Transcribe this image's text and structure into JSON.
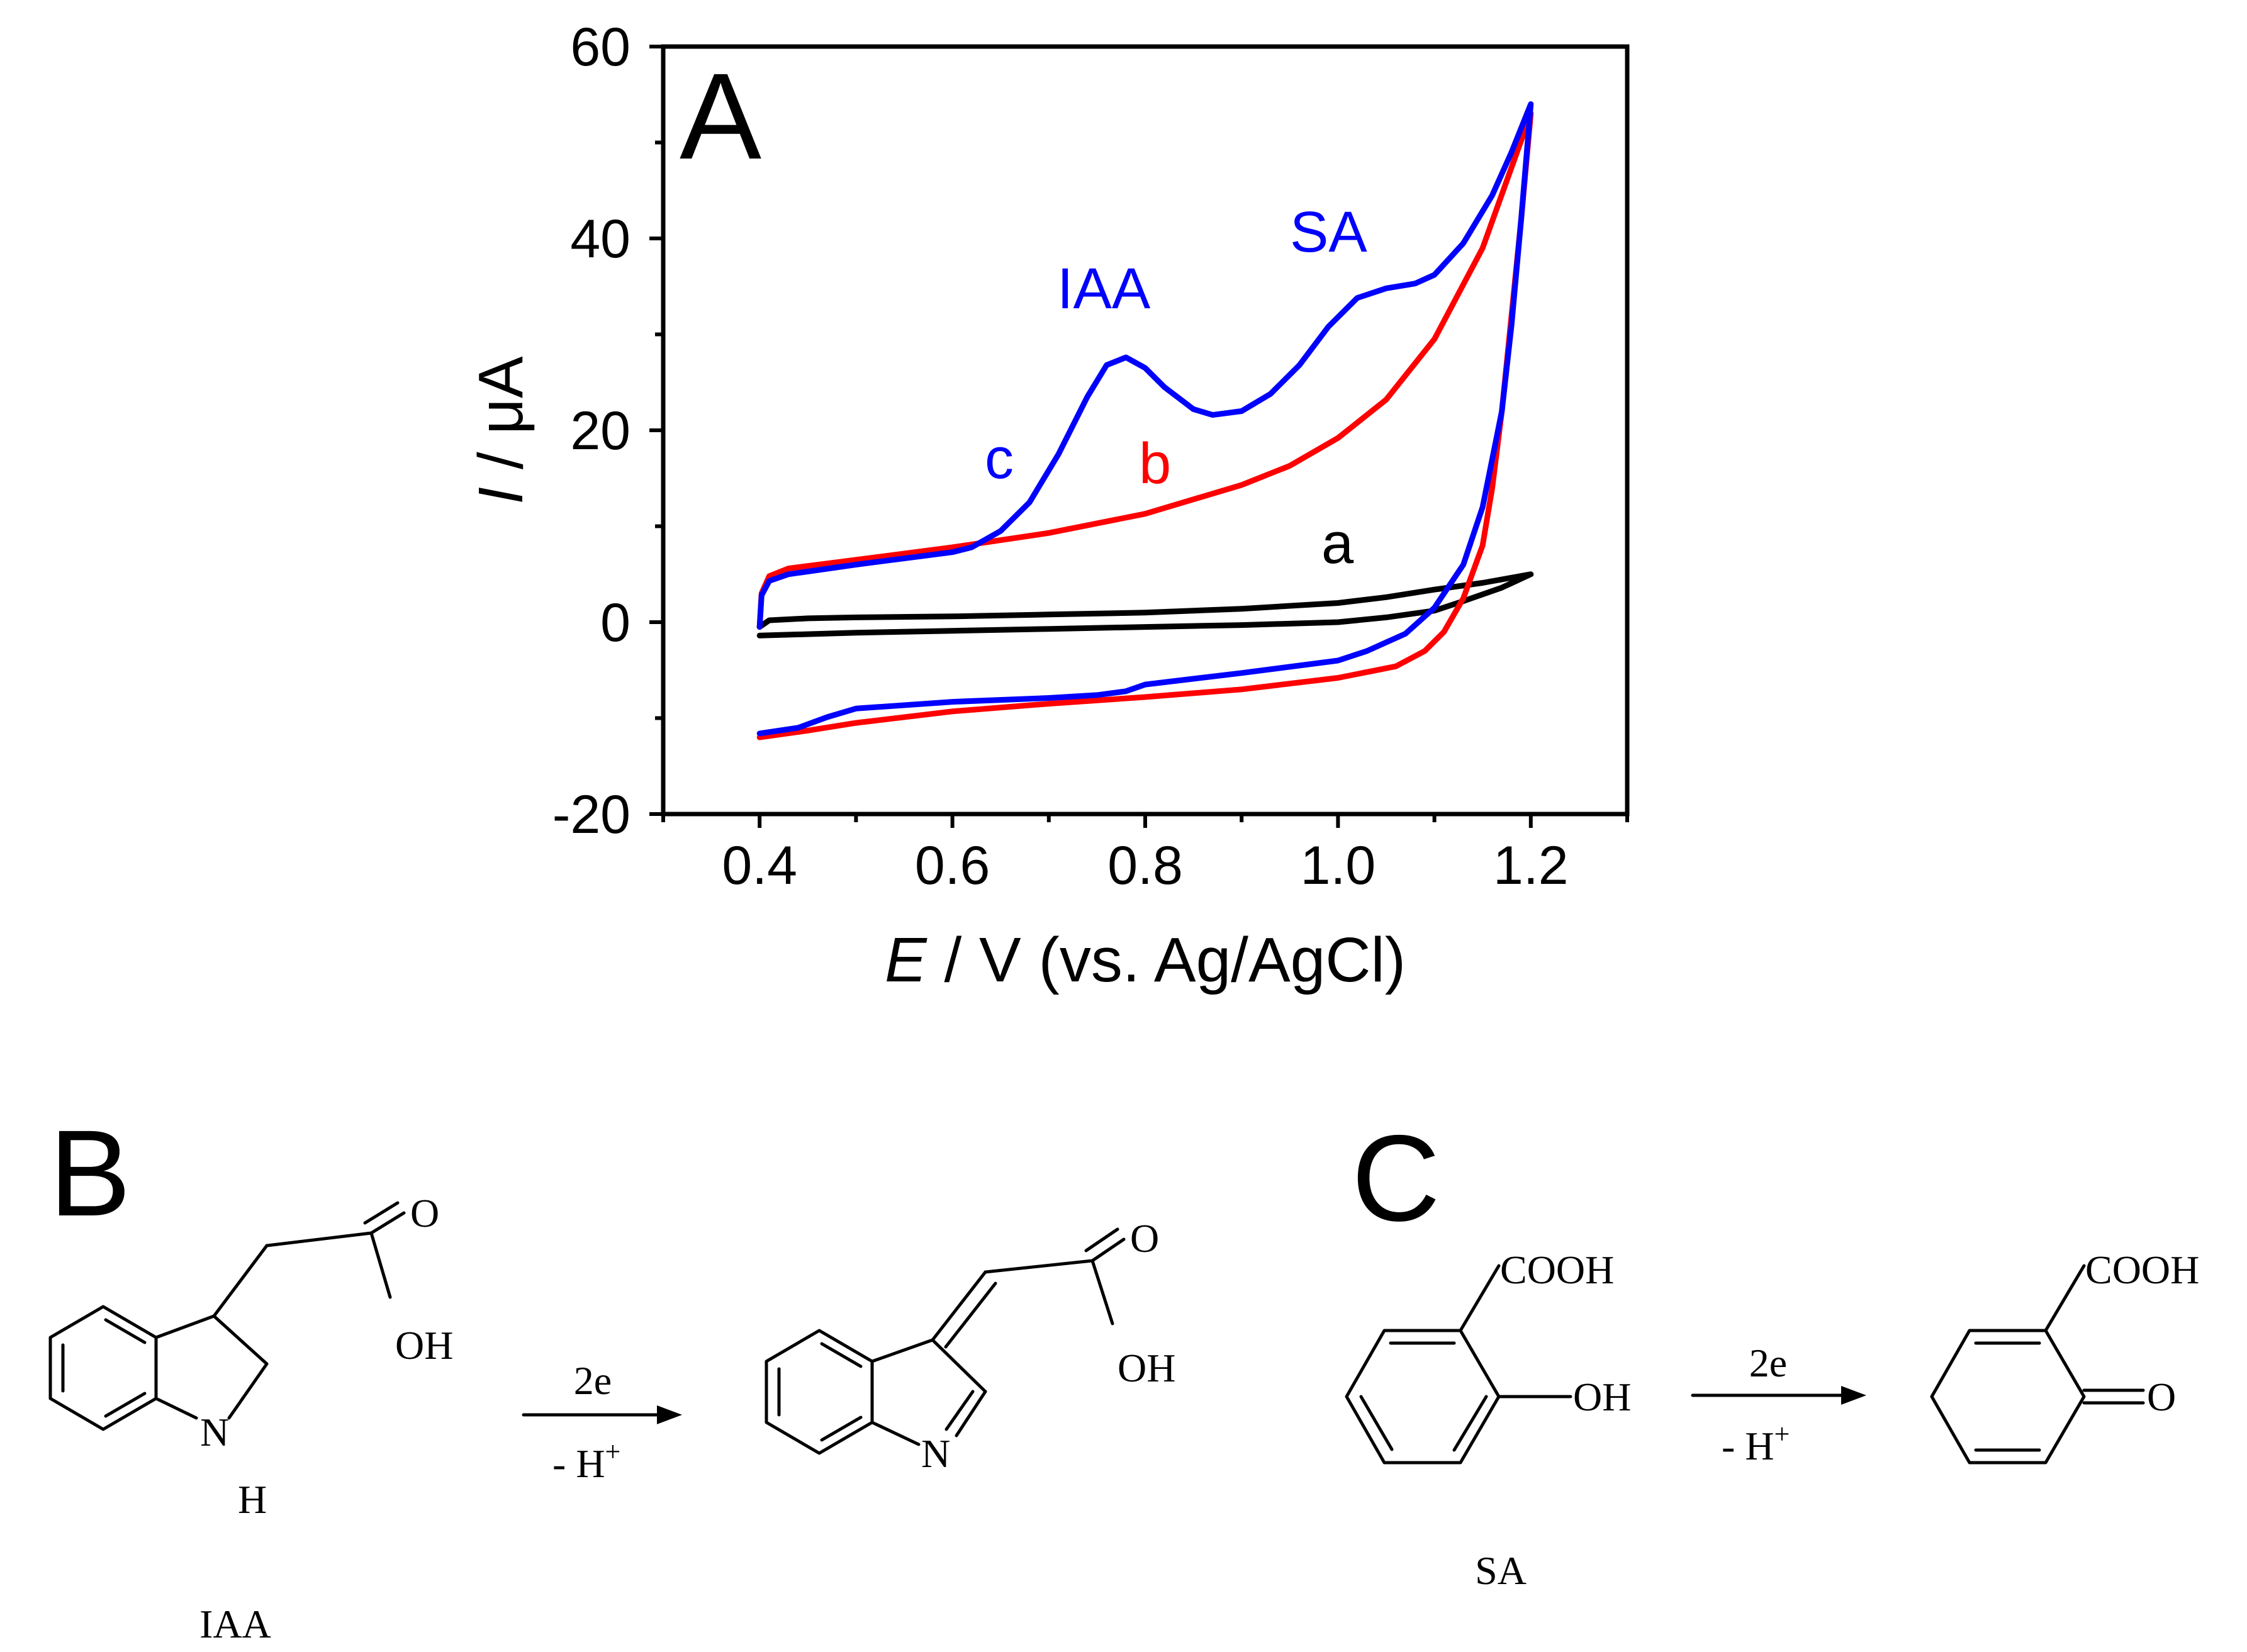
{
  "chart_data": {
    "type": "line",
    "panel_label": "A",
    "xlabel": {
      "italic": "E",
      "rest": " / V (vs. Ag/AgCl)"
    },
    "ylabel": {
      "italic": "I",
      "rest": " / μA"
    },
    "xlim": [
      0.3,
      1.3
    ],
    "ylim": [
      -20,
      60
    ],
    "x_ticks": [
      "0.4",
      "0.6",
      "0.8",
      "1.0",
      "1.2"
    ],
    "y_ticks": [
      "-20",
      "0",
      "20",
      "40",
      "60"
    ],
    "annotations": {
      "iaa": "IAA",
      "sa": "SA"
    },
    "series": [
      {
        "name": "a",
        "color": "#000000",
        "forward": [
          [
            0.4,
            -0.5
          ],
          [
            0.41,
            0.2
          ],
          [
            0.45,
            0.4
          ],
          [
            0.5,
            0.5
          ],
          [
            0.6,
            0.6
          ],
          [
            0.7,
            0.8
          ],
          [
            0.8,
            1.0
          ],
          [
            0.9,
            1.4
          ],
          [
            1.0,
            2.0
          ],
          [
            1.05,
            2.6
          ],
          [
            1.1,
            3.4
          ],
          [
            1.15,
            4.1
          ],
          [
            1.2,
            5.0
          ]
        ],
        "reverse": [
          [
            1.2,
            5.0
          ],
          [
            1.17,
            3.6
          ],
          [
            1.13,
            2.2
          ],
          [
            1.1,
            1.2
          ],
          [
            1.05,
            0.5
          ],
          [
            1.0,
            0.0
          ],
          [
            0.9,
            -0.3
          ],
          [
            0.8,
            -0.5
          ],
          [
            0.7,
            -0.7
          ],
          [
            0.6,
            -0.9
          ],
          [
            0.5,
            -1.1
          ],
          [
            0.4,
            -1.4
          ]
        ]
      },
      {
        "name": "b",
        "color": "#ff0000",
        "forward": [
          [
            0.4,
            -0.5
          ],
          [
            0.402,
            3.0
          ],
          [
            0.41,
            4.8
          ],
          [
            0.43,
            5.6
          ],
          [
            0.5,
            6.5
          ],
          [
            0.6,
            7.8
          ],
          [
            0.7,
            9.3
          ],
          [
            0.8,
            11.3
          ],
          [
            0.9,
            14.3
          ],
          [
            0.95,
            16.3
          ],
          [
            1.0,
            19.2
          ],
          [
            1.05,
            23.2
          ],
          [
            1.1,
            29.5
          ],
          [
            1.15,
            39.0
          ],
          [
            1.2,
            53.0
          ]
        ],
        "reverse": [
          [
            1.2,
            53.0
          ],
          [
            1.19,
            42.0
          ],
          [
            1.18,
            32.0
          ],
          [
            1.17,
            22.0
          ],
          [
            1.16,
            14.0
          ],
          [
            1.15,
            8.0
          ],
          [
            1.13,
            2.5
          ],
          [
            1.11,
            -1.0
          ],
          [
            1.09,
            -3.0
          ],
          [
            1.06,
            -4.6
          ],
          [
            1.0,
            -5.8
          ],
          [
            0.9,
            -7.0
          ],
          [
            0.8,
            -7.8
          ],
          [
            0.7,
            -8.5
          ],
          [
            0.6,
            -9.3
          ],
          [
            0.5,
            -10.5
          ],
          [
            0.45,
            -11.3
          ],
          [
            0.4,
            -12.0
          ]
        ]
      },
      {
        "name": "c",
        "color": "#0000ff",
        "forward": [
          [
            0.4,
            -0.5
          ],
          [
            0.402,
            2.8
          ],
          [
            0.41,
            4.3
          ],
          [
            0.43,
            5.0
          ],
          [
            0.5,
            6.0
          ],
          [
            0.6,
            7.3
          ],
          [
            0.62,
            7.8
          ],
          [
            0.65,
            9.5
          ],
          [
            0.68,
            12.5
          ],
          [
            0.71,
            17.5
          ],
          [
            0.74,
            23.5
          ],
          [
            0.76,
            26.8
          ],
          [
            0.78,
            27.6
          ],
          [
            0.8,
            26.5
          ],
          [
            0.82,
            24.5
          ],
          [
            0.85,
            22.2
          ],
          [
            0.87,
            21.6
          ],
          [
            0.9,
            22.0
          ],
          [
            0.93,
            23.8
          ],
          [
            0.96,
            26.8
          ],
          [
            0.99,
            30.8
          ],
          [
            1.02,
            33.8
          ],
          [
            1.05,
            34.8
          ],
          [
            1.08,
            35.3
          ],
          [
            1.1,
            36.2
          ],
          [
            1.13,
            39.5
          ],
          [
            1.16,
            44.5
          ],
          [
            1.18,
            49.0
          ],
          [
            1.2,
            54.0
          ]
        ],
        "reverse": [
          [
            1.2,
            54.0
          ],
          [
            1.19,
            42.0
          ],
          [
            1.18,
            31.0
          ],
          [
            1.17,
            22.0
          ],
          [
            1.15,
            12.0
          ],
          [
            1.13,
            6.0
          ],
          [
            1.1,
            1.5
          ],
          [
            1.07,
            -1.2
          ],
          [
            1.03,
            -3.0
          ],
          [
            1.0,
            -4.0
          ],
          [
            0.9,
            -5.3
          ],
          [
            0.8,
            -6.5
          ],
          [
            0.78,
            -7.2
          ],
          [
            0.75,
            -7.6
          ],
          [
            0.7,
            -7.9
          ],
          [
            0.6,
            -8.3
          ],
          [
            0.5,
            -9.0
          ],
          [
            0.47,
            -9.9
          ],
          [
            0.44,
            -11.0
          ],
          [
            0.4,
            -11.6
          ]
        ]
      }
    ]
  },
  "scheme": {
    "panel_b": "B",
    "panel_c": "C",
    "iaa_label": "IAA",
    "sa_label": "SA",
    "o": "O",
    "oh": "OH",
    "nh_n": "N",
    "nh_h": "H",
    "n": "N",
    "cooh": "COOH",
    "arrow_top": "2e",
    "arrow_bottom_prefix": "- H",
    "arrow_bottom_sup": "+"
  }
}
